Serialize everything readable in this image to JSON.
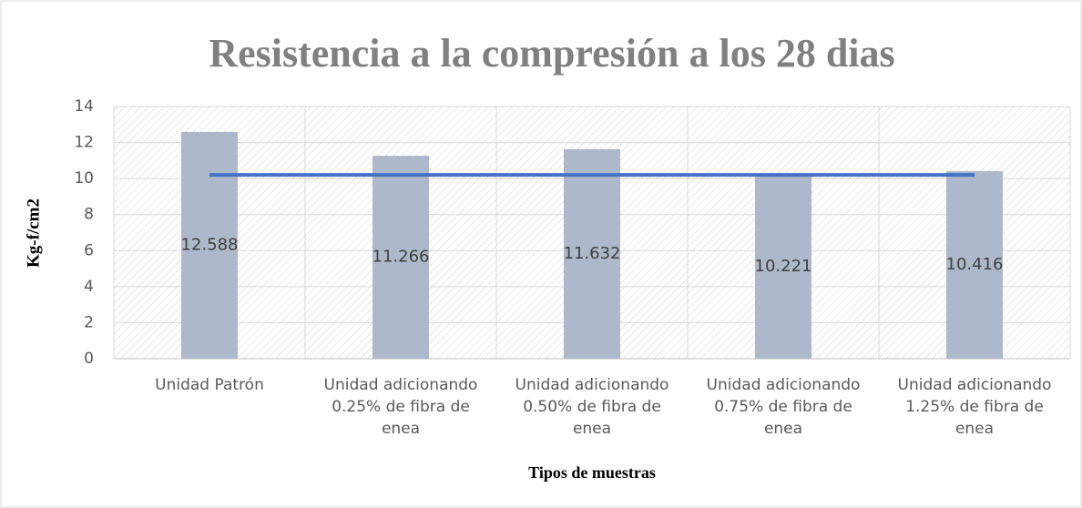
{
  "chart_data": {
    "type": "bar",
    "title": "Resistencia a la compresión a los 28 dias",
    "x_label": "Tipos de muestras",
    "y_label": "Kg-f/cm2",
    "categories": [
      "Unidad Patrón",
      "Unidad adicionando 0.25% de fibra de enea",
      "Unidad adicionando 0.50% de fibra de enea",
      "Unidad adicionando 0.75% de fibra de enea",
      "Unidad adicionando 1.25% de fibra de enea"
    ],
    "series": [
      {
        "type": "bar",
        "color": "#adb9ca",
        "values": [
          12.588,
          11.266,
          11.632,
          10.221,
          10.416
        ]
      },
      {
        "type": "line",
        "color": "#4472c4",
        "values": [
          10.2,
          10.2,
          10.2,
          10.2,
          10.2
        ]
      }
    ],
    "ylim": [
      0,
      14
    ],
    "yticks": [
      0,
      2,
      4,
      6,
      8,
      10,
      12,
      14
    ],
    "grid": true
  }
}
